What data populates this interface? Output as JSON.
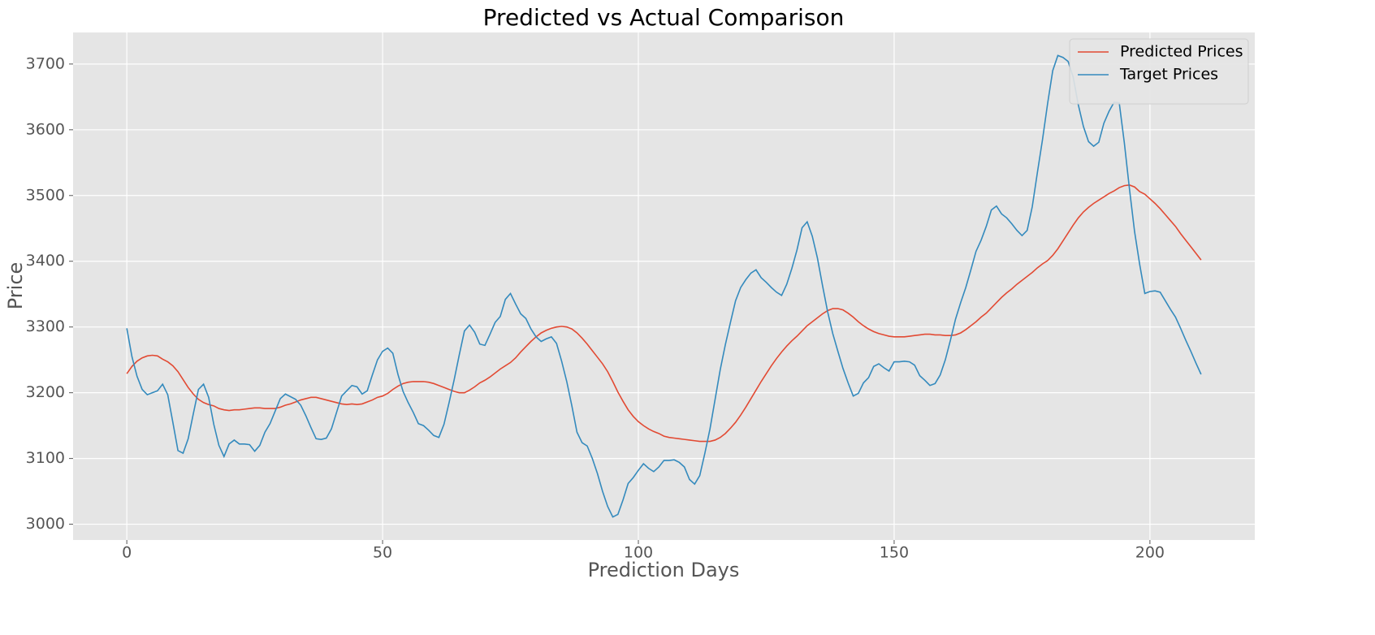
{
  "chart_data": {
    "type": "line",
    "title": "Predicted vs Actual Comparison",
    "x_label": "Prediction Days",
    "y_label": "Price",
    "xlim": [
      -10.5,
      220.5
    ],
    "ylim": [
      2976,
      3748
    ],
    "xticks": [
      0,
      50,
      100,
      150,
      200
    ],
    "yticks": [
      3000,
      3100,
      3200,
      3300,
      3400,
      3500,
      3600,
      3700
    ],
    "grid": true,
    "legend": "upper right",
    "x": [
      0,
      1,
      2,
      3,
      4,
      5,
      6,
      7,
      8,
      9,
      10,
      11,
      12,
      13,
      14,
      15,
      16,
      17,
      18,
      19,
      20,
      21,
      22,
      23,
      24,
      25,
      26,
      27,
      28,
      29,
      30,
      31,
      32,
      33,
      34,
      35,
      36,
      37,
      38,
      39,
      40,
      41,
      42,
      43,
      44,
      45,
      46,
      47,
      48,
      49,
      50,
      51,
      52,
      53,
      54,
      55,
      56,
      57,
      58,
      59,
      60,
      61,
      62,
      63,
      64,
      65,
      66,
      67,
      68,
      69,
      70,
      71,
      72,
      73,
      74,
      75,
      76,
      77,
      78,
      79,
      80,
      81,
      82,
      83,
      84,
      85,
      86,
      87,
      88,
      89,
      90,
      91,
      92,
      93,
      94,
      95,
      96,
      97,
      98,
      99,
      100,
      101,
      102,
      103,
      104,
      105,
      106,
      107,
      108,
      109,
      110,
      111,
      112,
      113,
      114,
      115,
      116,
      117,
      118,
      119,
      120,
      121,
      122,
      123,
      124,
      125,
      126,
      127,
      128,
      129,
      130,
      131,
      132,
      133,
      134,
      135,
      136,
      137,
      138,
      139,
      140,
      141,
      142,
      143,
      144,
      145,
      146,
      147,
      148,
      149,
      150,
      151,
      152,
      153,
      154,
      155,
      156,
      157,
      158,
      159,
      160,
      161,
      162,
      163,
      164,
      165,
      166,
      167,
      168,
      169,
      170,
      171,
      172,
      173,
      174,
      175,
      176,
      177,
      178,
      179,
      180,
      181,
      182,
      183,
      184,
      185,
      186,
      187,
      188,
      189,
      190,
      191,
      192,
      193,
      194,
      195,
      196,
      197,
      198,
      199,
      200,
      201,
      202,
      203,
      204,
      205,
      206,
      207,
      208,
      209,
      210
    ],
    "series": [
      {
        "name": "Predicted Prices",
        "color": "#E24A33",
        "values": [
          3229,
          3240,
          3248,
          3253,
          3256,
          3257,
          3256,
          3251,
          3247,
          3241,
          3232,
          3220,
          3208,
          3198,
          3190,
          3185,
          3182,
          3180,
          3176,
          3174,
          3173,
          3174,
          3174,
          3175,
          3176,
          3177,
          3177,
          3176,
          3176,
          3176,
          3178,
          3181,
          3183,
          3186,
          3189,
          3191,
          3193,
          3193,
          3191,
          3189,
          3187,
          3185,
          3183,
          3182,
          3183,
          3182,
          3183,
          3186,
          3189,
          3193,
          3195,
          3199,
          3205,
          3210,
          3214,
          3216,
          3217,
          3217,
          3217,
          3216,
          3214,
          3211,
          3208,
          3205,
          3202,
          3200,
          3200,
          3204,
          3209,
          3215,
          3219,
          3224,
          3230,
          3236,
          3241,
          3246,
          3253,
          3262,
          3270,
          3278,
          3285,
          3291,
          3295,
          3298,
          3300,
          3301,
          3300,
          3297,
          3291,
          3283,
          3274,
          3264,
          3254,
          3244,
          3232,
          3217,
          3201,
          3187,
          3174,
          3164,
          3156,
          3150,
          3145,
          3141,
          3138,
          3134,
          3132,
          3131,
          3130,
          3129,
          3128,
          3127,
          3126,
          3126,
          3126,
          3128,
          3132,
          3138,
          3146,
          3155,
          3166,
          3178,
          3191,
          3204,
          3217,
          3229,
          3241,
          3252,
          3262,
          3271,
          3279,
          3286,
          3294,
          3302,
          3308,
          3314,
          3320,
          3325,
          3328,
          3328,
          3326,
          3321,
          3315,
          3308,
          3302,
          3297,
          3293,
          3290,
          3288,
          3286,
          3285,
          3285,
          3285,
          3286,
          3287,
          3288,
          3289,
          3289,
          3288,
          3288,
          3287,
          3287,
          3288,
          3291,
          3296,
          3302,
          3308,
          3315,
          3321,
          3329,
          3337,
          3345,
          3352,
          3358,
          3365,
          3371,
          3377,
          3383,
          3390,
          3396,
          3401,
          3409,
          3419,
          3431,
          3443,
          3455,
          3466,
          3475,
          3482,
          3488,
          3493,
          3498,
          3503,
          3507,
          3512,
          3515,
          3516,
          3513,
          3506,
          3502,
          3495,
          3488,
          3480,
          3471,
          3462,
          3453,
          3442,
          3432,
          3422,
          3412,
          3402
        ]
      },
      {
        "name": "Target Prices",
        "color": "#348ABD",
        "values": [
          3298,
          3255,
          3225,
          3205,
          3197,
          3200,
          3203,
          3213,
          3197,
          3155,
          3112,
          3108,
          3130,
          3168,
          3205,
          3213,
          3193,
          3152,
          3120,
          3103,
          3122,
          3128,
          3122,
          3122,
          3121,
          3111,
          3120,
          3140,
          3153,
          3172,
          3191,
          3198,
          3194,
          3190,
          3181,
          3165,
          3147,
          3130,
          3129,
          3131,
          3145,
          3170,
          3195,
          3203,
          3211,
          3209,
          3198,
          3203,
          3227,
          3250,
          3263,
          3268,
          3260,
          3228,
          3202,
          3185,
          3170,
          3153,
          3150,
          3143,
          3135,
          3132,
          3152,
          3185,
          3220,
          3258,
          3294,
          3303,
          3292,
          3274,
          3272,
          3289,
          3307,
          3316,
          3342,
          3351,
          3335,
          3320,
          3313,
          3297,
          3285,
          3278,
          3282,
          3285,
          3275,
          3248,
          3217,
          3180,
          3140,
          3124,
          3119,
          3100,
          3077,
          3050,
          3027,
          3011,
          3015,
          3037,
          3062,
          3071,
          3082,
          3092,
          3085,
          3080,
          3087,
          3097,
          3097,
          3098,
          3094,
          3087,
          3068,
          3061,
          3074,
          3108,
          3145,
          3190,
          3235,
          3273,
          3307,
          3340,
          3360,
          3372,
          3382,
          3387,
          3375,
          3368,
          3360,
          3353,
          3348,
          3365,
          3389,
          3417,
          3451,
          3460,
          3438,
          3405,
          3363,
          3323,
          3290,
          3263,
          3237,
          3215,
          3195,
          3199,
          3215,
          3223,
          3240,
          3244,
          3238,
          3233,
          3247,
          3247,
          3248,
          3247,
          3242,
          3226,
          3219,
          3211,
          3214,
          3227,
          3250,
          3280,
          3312,
          3337,
          3360,
          3387,
          3415,
          3432,
          3453,
          3478,
          3484,
          3472,
          3466,
          3457,
          3447,
          3439,
          3447,
          3483,
          3535,
          3585,
          3640,
          3690,
          3713,
          3710,
          3704,
          3680,
          3638,
          3605,
          3582,
          3575,
          3581,
          3610,
          3628,
          3642,
          3641,
          3580,
          3510,
          3445,
          3395,
          3351,
          3354,
          3355,
          3353,
          3340,
          3327,
          3315,
          3298,
          3280,
          3263,
          3245,
          3228
        ]
      }
    ]
  }
}
